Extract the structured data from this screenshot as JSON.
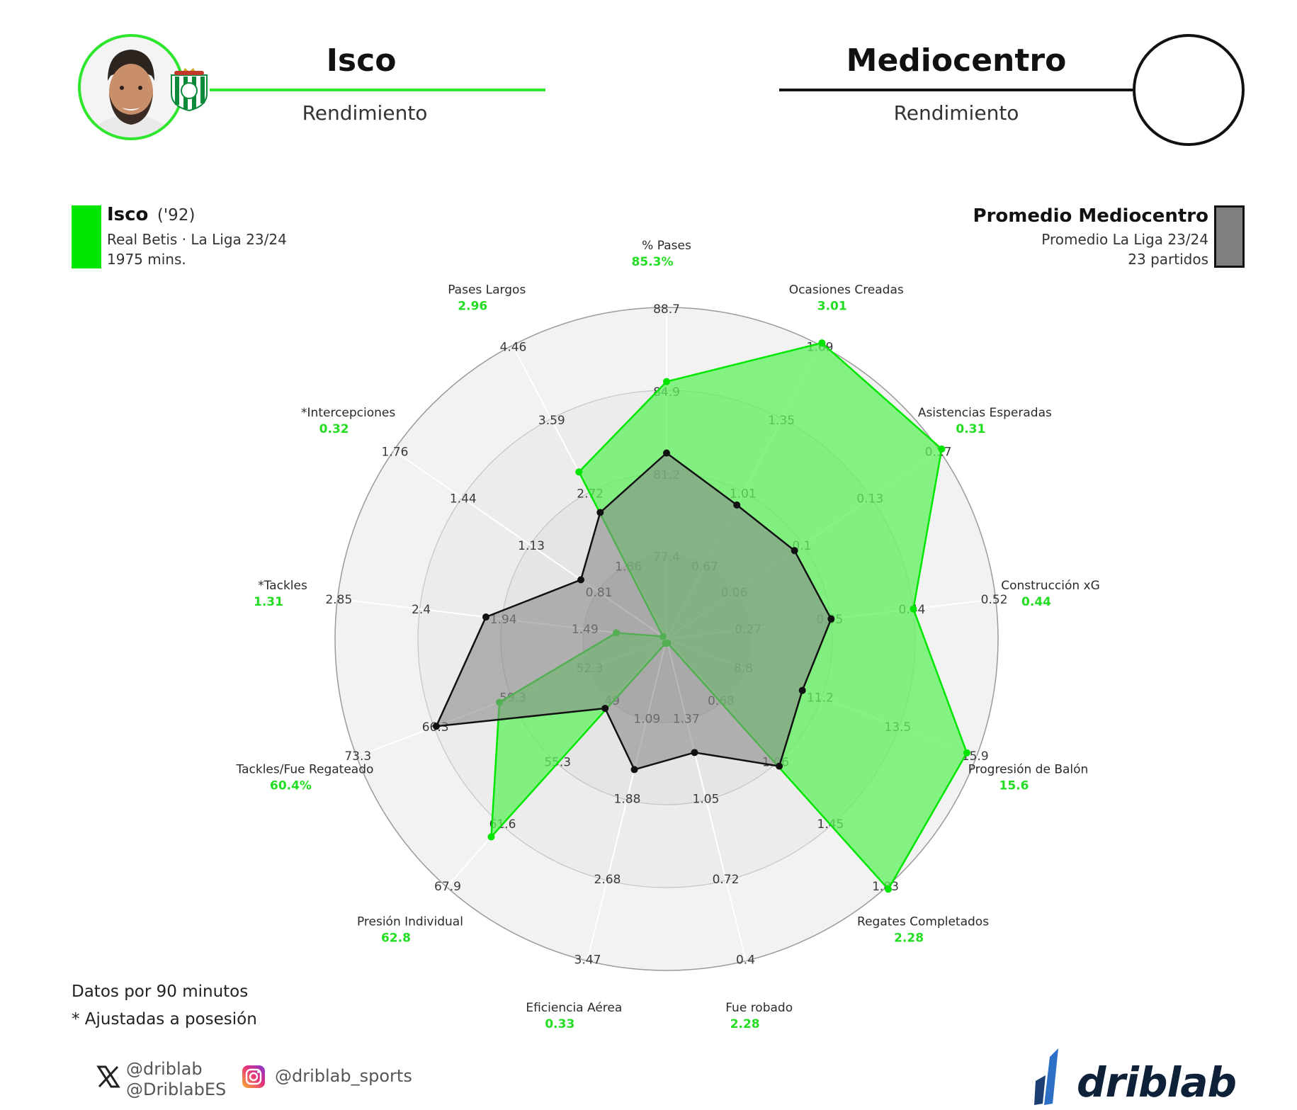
{
  "header": {
    "player_name": "Isco",
    "player_subtitle": "Rendimiento",
    "position_name": "Mediocentro",
    "position_subtitle": "Rendimiento"
  },
  "legend_player": {
    "name": "Isco",
    "year": "('92)",
    "team_league": "Real Betis · La Liga 23/24",
    "minutes": "1975 mins.",
    "color": "#00e600"
  },
  "legend_average": {
    "name": "Promedio Mediocentro",
    "league": "Promedio La Liga 23/24",
    "matches": "23 partidos",
    "color": "#7f7f7f"
  },
  "footer": {
    "note_1": "Datos por 90 minutos",
    "note_2": "* Ajustadas a posesión"
  },
  "social": {
    "x_handle_1": "@driblab",
    "x_handle_2": "@DriblabES",
    "instagram": "@driblab_sports"
  },
  "brand": {
    "name": "driblab"
  },
  "colors": {
    "player": "#00e600",
    "player_fill": "#5ef25e",
    "average": "#111111",
    "average_fill": "#8a8a8a"
  },
  "chart_data": {
    "type": "radar",
    "series": [
      {
        "name": "Isco",
        "values": [
          85.3,
          3.01,
          0.31,
          0.44,
          15.6,
          2.28,
          2.28,
          0.33,
          62.8,
          60.4,
          1.31,
          0.32,
          2.96
        ]
      },
      {
        "name": "Promedio Mediocentro",
        "values": [
          82.1,
          0.95,
          0.095,
          0.35,
          10.6,
          1.08,
          1.24,
          1.58,
          49.7,
          66.1,
          2.03,
          0.89,
          2.48
        ]
      }
    ],
    "axes": [
      {
        "label": "% Pases",
        "player_value": "85.3%",
        "ticks": [
          "77.4",
          "81.2",
          "84.9",
          "88.7"
        ]
      },
      {
        "label": "Ocasiones Creadas",
        "player_value": "3.01",
        "ticks": [
          "0.67",
          "1.01",
          "1.35",
          "1.69"
        ]
      },
      {
        "label": "Asistencias Esperadas",
        "player_value": "0.31",
        "ticks": [
          "0.06",
          "0.1",
          "0.13",
          "0.17"
        ]
      },
      {
        "label": "Construcción xG",
        "player_value": "0.44",
        "ticks": [
          "0.27",
          "0.35",
          "0.44",
          "0.52"
        ]
      },
      {
        "label": "Progresión de Balón",
        "player_value": "15.6",
        "ticks": [
          "8.8",
          "11.2",
          "13.5",
          "15.9"
        ]
      },
      {
        "label": "Regates Completados",
        "player_value": "2.28",
        "ticks": [
          "0.68",
          "1.06",
          "1.45",
          "1.83"
        ]
      },
      {
        "label": "Fue robado",
        "player_value": "2.28",
        "ticks": [
          "1.37",
          "1.05",
          "0.72",
          "0.4"
        ]
      },
      {
        "label": "Eficiencia Aérea",
        "player_value": "0.33",
        "ticks": [
          "1.09",
          "1.88",
          "2.68",
          "3.47"
        ]
      },
      {
        "label": "Presión Individual",
        "player_value": "62.8",
        "ticks": [
          "49",
          "55.3",
          "61.6",
          "67.9"
        ]
      },
      {
        "label": "Tackles/Fue Regateado",
        "player_value": "60.4%",
        "ticks": [
          "52.3",
          "59.3",
          "66.3",
          "73.3"
        ]
      },
      {
        "label": "*Tackles",
        "player_value": "1.31",
        "ticks": [
          "1.49",
          "1.94",
          "2.4",
          "2.85"
        ]
      },
      {
        "label": "*Intercepciones",
        "player_value": "0.32",
        "ticks": [
          "0.81",
          "1.13",
          "1.44",
          "1.76"
        ]
      },
      {
        "label": "Pases Largos",
        "player_value": "2.96",
        "ticks": [
          "1.86",
          "2.72",
          "3.59",
          "4.46"
        ]
      }
    ]
  }
}
